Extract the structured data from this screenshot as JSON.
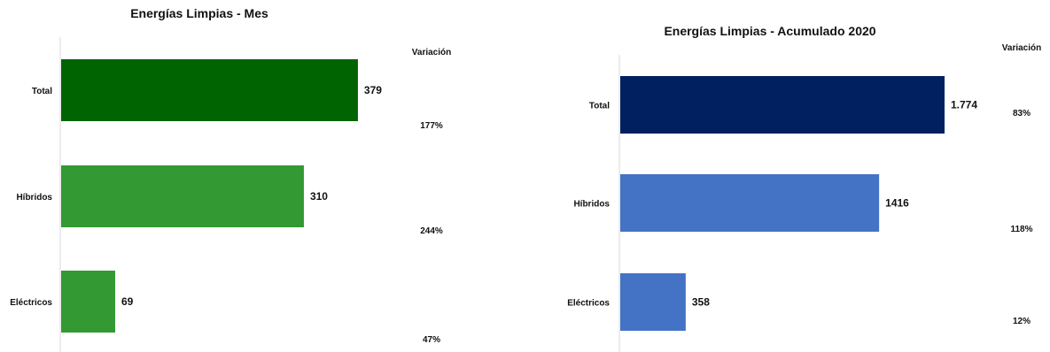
{
  "chart_data": [
    {
      "type": "bar",
      "orientation": "horizontal",
      "title": "Energías  Limpias - Mes",
      "categories": [
        "Total",
        "Híbridos",
        "Eléctricos"
      ],
      "values": [
        379,
        310,
        69
      ],
      "value_labels": [
        "379",
        "310",
        "69"
      ],
      "variation_header": "Variación",
      "variation": [
        "177%",
        "244%",
        "47%"
      ],
      "colors": [
        "#006400",
        "#339933",
        "#339933"
      ],
      "xlim": [
        0,
        430
      ],
      "grid": false,
      "legend": "none"
    },
    {
      "type": "bar",
      "orientation": "horizontal",
      "title": "Energías  Limpias - Acumulado 2020",
      "categories": [
        "Total",
        "Híbridos",
        "Eléctricos"
      ],
      "values": [
        1774,
        1416,
        358
      ],
      "value_labels": [
        "1.774",
        "1416",
        "358"
      ],
      "variation_header": "Variación",
      "variation": [
        "83%",
        "118%",
        "12%"
      ],
      "colors": [
        "#002060",
        "#4472C4",
        "#4472C4"
      ],
      "xlim": [
        0,
        1900
      ],
      "grid": false,
      "legend": "none"
    }
  ]
}
